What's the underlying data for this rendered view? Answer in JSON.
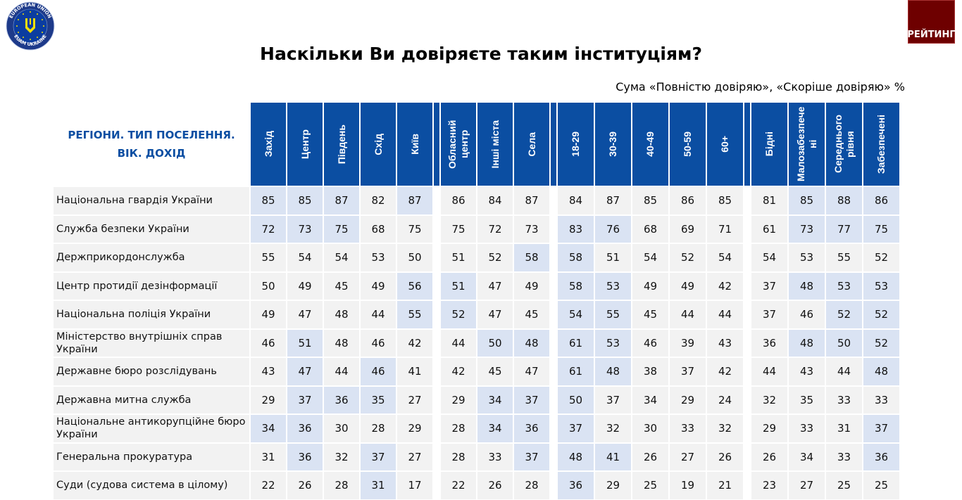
{
  "logo": {
    "top_text": "EUROPEAN UNION",
    "bottom_text": "EUAM UKRAINE"
  },
  "badge": {
    "label": "РЕЙТИНГ"
  },
  "title": "Наскільки Ви довіряєте таким інституціям?",
  "subtitle": "Сума «Повністю довіряю», «Скоріше довіряю» %",
  "colors": {
    "header": "#0b4ea2",
    "highlight": "#dae3f3",
    "cell": "#f2f2f2",
    "badge": "#6e0000"
  },
  "table": {
    "corner_label_line1": "РЕГІОНИ. ТИП ПОСЕЛЕННЯ.",
    "corner_label_line2": "ВІК. ДОХІД",
    "groups": [
      [
        "Захід",
        "Центр",
        "Південь",
        "Схід",
        "Київ"
      ],
      [
        "Обласний центр",
        "Інші міста",
        "Села"
      ],
      [
        "18-29",
        "30-39",
        "40-49",
        "50-59",
        "60+"
      ],
      [
        "Бідні",
        "Малозабезпечені",
        "Середнього рівня",
        "Забезпечені"
      ]
    ],
    "rows": [
      {
        "label": "Національна гвардія України",
        "values": [
          85,
          85,
          87,
          82,
          87,
          86,
          84,
          87,
          84,
          87,
          85,
          86,
          85,
          81,
          85,
          88,
          86
        ],
        "highlighted": [
          0,
          1,
          2,
          4,
          14,
          15,
          16
        ]
      },
      {
        "label": "Служба безпеки України",
        "values": [
          72,
          73,
          75,
          68,
          75,
          75,
          72,
          73,
          83,
          76,
          68,
          69,
          71,
          61,
          73,
          77,
          75
        ],
        "highlighted": [
          0,
          1,
          2,
          8,
          9,
          14,
          15,
          16
        ]
      },
      {
        "label": "Держприкордонслужба",
        "values": [
          55,
          54,
          54,
          53,
          50,
          51,
          52,
          58,
          58,
          51,
          54,
          52,
          54,
          54,
          53,
          55,
          52
        ],
        "highlighted": [
          7,
          8
        ]
      },
      {
        "label": "Центр протидії дезінформації",
        "values": [
          50,
          49,
          45,
          49,
          56,
          51,
          47,
          49,
          58,
          53,
          49,
          49,
          42,
          37,
          48,
          53,
          53
        ],
        "highlighted": [
          4,
          5,
          8,
          9,
          14,
          15,
          16
        ]
      },
      {
        "label": "Національна поліція України",
        "values": [
          49,
          47,
          48,
          44,
          55,
          52,
          47,
          45,
          54,
          55,
          45,
          44,
          44,
          37,
          46,
          52,
          52
        ],
        "highlighted": [
          4,
          5,
          8,
          9,
          15,
          16
        ]
      },
      {
        "label": "Міністерство внутрішніх справ України",
        "values": [
          46,
          51,
          48,
          46,
          42,
          44,
          50,
          48,
          61,
          53,
          46,
          39,
          43,
          36,
          48,
          50,
          52
        ],
        "highlighted": [
          1,
          6,
          7,
          8,
          9,
          14,
          15,
          16
        ]
      },
      {
        "label": "Державне бюро розслідувань",
        "values": [
          43,
          47,
          44,
          46,
          41,
          42,
          45,
          47,
          61,
          48,
          38,
          37,
          42,
          44,
          43,
          44,
          48
        ],
        "highlighted": [
          1,
          3,
          8,
          9,
          16
        ]
      },
      {
        "label": "Державна митна служба",
        "values": [
          29,
          37,
          36,
          35,
          27,
          29,
          34,
          37,
          50,
          37,
          34,
          29,
          24,
          32,
          35,
          33,
          33
        ],
        "highlighted": [
          1,
          2,
          3,
          6,
          7,
          8
        ]
      },
      {
        "label": "Національне антикорупційне бюро України",
        "values": [
          34,
          36,
          30,
          28,
          29,
          28,
          34,
          36,
          37,
          32,
          30,
          33,
          32,
          29,
          33,
          31,
          37
        ],
        "highlighted": [
          0,
          1,
          6,
          7,
          8,
          16
        ]
      },
      {
        "label": "Генеральна прокуратура",
        "values": [
          31,
          36,
          32,
          37,
          27,
          28,
          33,
          37,
          48,
          41,
          26,
          27,
          26,
          26,
          34,
          33,
          36
        ],
        "highlighted": [
          1,
          3,
          7,
          8,
          9,
          16
        ]
      },
      {
        "label": "Суди (судова система в цілому)",
        "values": [
          22,
          26,
          28,
          31,
          17,
          22,
          26,
          28,
          36,
          29,
          25,
          19,
          21,
          23,
          27,
          25,
          25
        ],
        "highlighted": [
          3,
          8
        ]
      }
    ]
  }
}
